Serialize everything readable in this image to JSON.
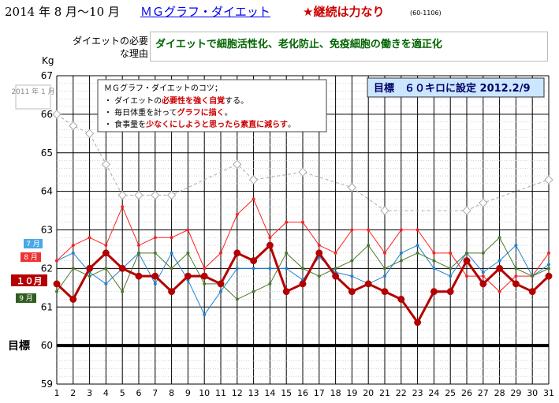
{
  "header": {
    "period": "2014 年 8 月～10 月",
    "title_link": "ＭＧグラフ・ダイエット",
    "motto": "★継続は力なり",
    "code": "(60-1106)"
  },
  "reason": {
    "label": "ダイエットの必要な理由",
    "text": "ダイエットで細胞活性化、老化防止、免疫細胞の働きを適正化"
  },
  "tips": {
    "title": "ＭＧグラフ・ダイエットのコツ；",
    "lines": [
      {
        "pre": "・ ダイエットの",
        "hl": "必要性を強く自覚",
        "post": "する。"
      },
      {
        "pre": "・ 毎日体重を計って",
        "hl": "グラフに描く",
        "post": "。"
      },
      {
        "pre": "・ 食事量を",
        "hl": "少なくにしようと思ったら素直に減らす",
        "post": "。"
      }
    ]
  },
  "goal_box": "目標　６０キロに設定 2012.2/9",
  "colors": {
    "jan2011": "#aaaaaa",
    "jul": "#1e82d2",
    "aug": "#ff2020",
    "sep": "#4a7a2a",
    "oct": "#b40000",
    "goal_line": "#000000",
    "goal_box_bg": "#cde6ff"
  },
  "chart_data": {
    "type": "line",
    "y_unit": "Kg",
    "ylim": [
      59,
      67
    ],
    "y_ticks": [
      "59",
      "60",
      "61",
      "62",
      "63",
      "64",
      "65",
      "66",
      "67"
    ],
    "x": [
      "1",
      "2",
      "3",
      "4",
      "5",
      "6",
      "7",
      "8",
      "9",
      "10",
      "11",
      "12",
      "13",
      "14",
      "15",
      "16",
      "17",
      "18",
      "19",
      "20",
      "21",
      "22",
      "23",
      "24",
      "25",
      "26",
      "27",
      "28",
      "29",
      "30",
      "31"
    ],
    "goal": {
      "label": "目標",
      "value": 60
    },
    "series": [
      {
        "name": "2011 年 1 月",
        "key": "jan2011",
        "values": [
          66.0,
          65.7,
          65.5,
          64.7,
          63.9,
          63.9,
          63.9,
          63.9,
          null,
          null,
          null,
          64.7,
          64.3,
          null,
          null,
          64.5,
          null,
          null,
          64.1,
          null,
          63.5,
          null,
          null,
          null,
          null,
          63.5,
          63.7,
          null,
          null,
          null,
          64.3
        ]
      },
      {
        "name": "7 月",
        "key": "jul",
        "values": [
          62.2,
          62.4,
          61.9,
          61.6,
          62.0,
          62.4,
          61.6,
          62.4,
          61.7,
          60.8,
          61.4,
          62.0,
          62.0,
          62.0,
          62.0,
          61.7,
          62.3,
          61.9,
          61.8,
          61.6,
          61.8,
          62.4,
          62.6,
          62.0,
          61.8,
          62.4,
          61.9,
          62.2,
          62.6,
          61.8,
          62.1
        ]
      },
      {
        "name": "8 月",
        "key": "aug",
        "values": [
          62.2,
          62.6,
          62.8,
          62.6,
          63.6,
          62.6,
          62.8,
          62.8,
          63.0,
          62.0,
          62.4,
          63.4,
          63.8,
          62.8,
          63.2,
          63.2,
          62.6,
          62.4,
          63.0,
          63.0,
          62.4,
          63.0,
          63.0,
          62.4,
          62.4,
          61.8,
          61.8,
          61.4,
          61.8,
          61.8,
          62.4
        ]
      },
      {
        "name": "9 月",
        "key": "sep",
        "values": [
          61.4,
          62.0,
          61.8,
          62.0,
          61.4,
          62.4,
          62.4,
          62.0,
          62.4,
          61.6,
          61.6,
          61.2,
          61.4,
          61.6,
          62.4,
          62.0,
          61.8,
          62.0,
          62.2,
          62.6,
          62.0,
          62.2,
          62.4,
          62.2,
          62.0,
          62.4,
          62.4,
          62.8,
          62.0,
          61.8,
          62.0
        ]
      },
      {
        "name": "１０月",
        "key": "oct",
        "values": [
          61.6,
          61.2,
          62.0,
          62.4,
          62.0,
          61.8,
          61.8,
          61.4,
          61.8,
          61.8,
          61.6,
          62.4,
          62.2,
          62.6,
          61.4,
          61.6,
          62.4,
          61.8,
          61.4,
          61.6,
          61.4,
          61.2,
          60.6,
          61.4,
          61.4,
          62.2,
          61.6,
          62.0,
          61.6,
          61.4,
          61.8
        ]
      }
    ]
  }
}
